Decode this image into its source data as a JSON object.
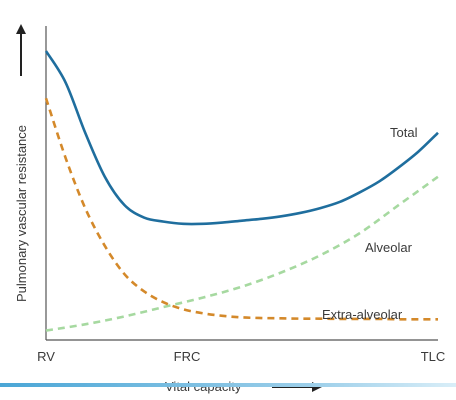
{
  "chart_data": {
    "type": "line",
    "xlabel": "Vital capacity",
    "ylabel": "Pulmonary vascular resistance",
    "x_ticks": [
      "RV",
      "FRC",
      "TLC"
    ],
    "xlim": [
      0,
      1
    ],
    "ylim": [
      0,
      1
    ],
    "grid": false,
    "legend": "inline labels at right",
    "series": [
      {
        "name": "Total",
        "style": "solid",
        "color": "#1f6e9e",
        "x": [
          0,
          0.05,
          0.1,
          0.15,
          0.2,
          0.25,
          0.3,
          0.35,
          0.4,
          0.45,
          0.5,
          0.55,
          0.6,
          0.65,
          0.7,
          0.75,
          0.8,
          0.85,
          0.9,
          0.95,
          1.0
        ],
        "y": [
          0.92,
          0.82,
          0.66,
          0.52,
          0.43,
          0.39,
          0.377,
          0.37,
          0.37,
          0.374,
          0.38,
          0.386,
          0.394,
          0.405,
          0.42,
          0.44,
          0.47,
          0.505,
          0.55,
          0.6,
          0.66
        ]
      },
      {
        "name": "Alveolar",
        "style": "dashed",
        "color": "#a6d9a0",
        "x": [
          0,
          0.1,
          0.2,
          0.3,
          0.4,
          0.5,
          0.6,
          0.7,
          0.8,
          0.9,
          1.0
        ],
        "y": [
          0.03,
          0.05,
          0.075,
          0.105,
          0.135,
          0.17,
          0.215,
          0.27,
          0.34,
          0.43,
          0.52
        ]
      },
      {
        "name": "Extra-alveolar",
        "style": "dashed",
        "color": "#d4892a",
        "x": [
          0,
          0.05,
          0.1,
          0.15,
          0.2,
          0.25,
          0.3,
          0.35,
          0.4,
          0.45,
          0.5,
          0.55,
          0.6,
          0.65,
          0.7,
          0.75,
          0.8,
          0.85,
          0.9,
          0.95,
          1.0
        ],
        "y": [
          0.77,
          0.58,
          0.42,
          0.3,
          0.21,
          0.155,
          0.12,
          0.098,
          0.085,
          0.077,
          0.072,
          0.07,
          0.069,
          0.068,
          0.068,
          0.067,
          0.067,
          0.067,
          0.066,
          0.066,
          0.066
        ]
      }
    ]
  },
  "colors": {
    "axis": "#555555",
    "text": "#3a3a3a",
    "accent_rule": "#4aa6d6"
  }
}
